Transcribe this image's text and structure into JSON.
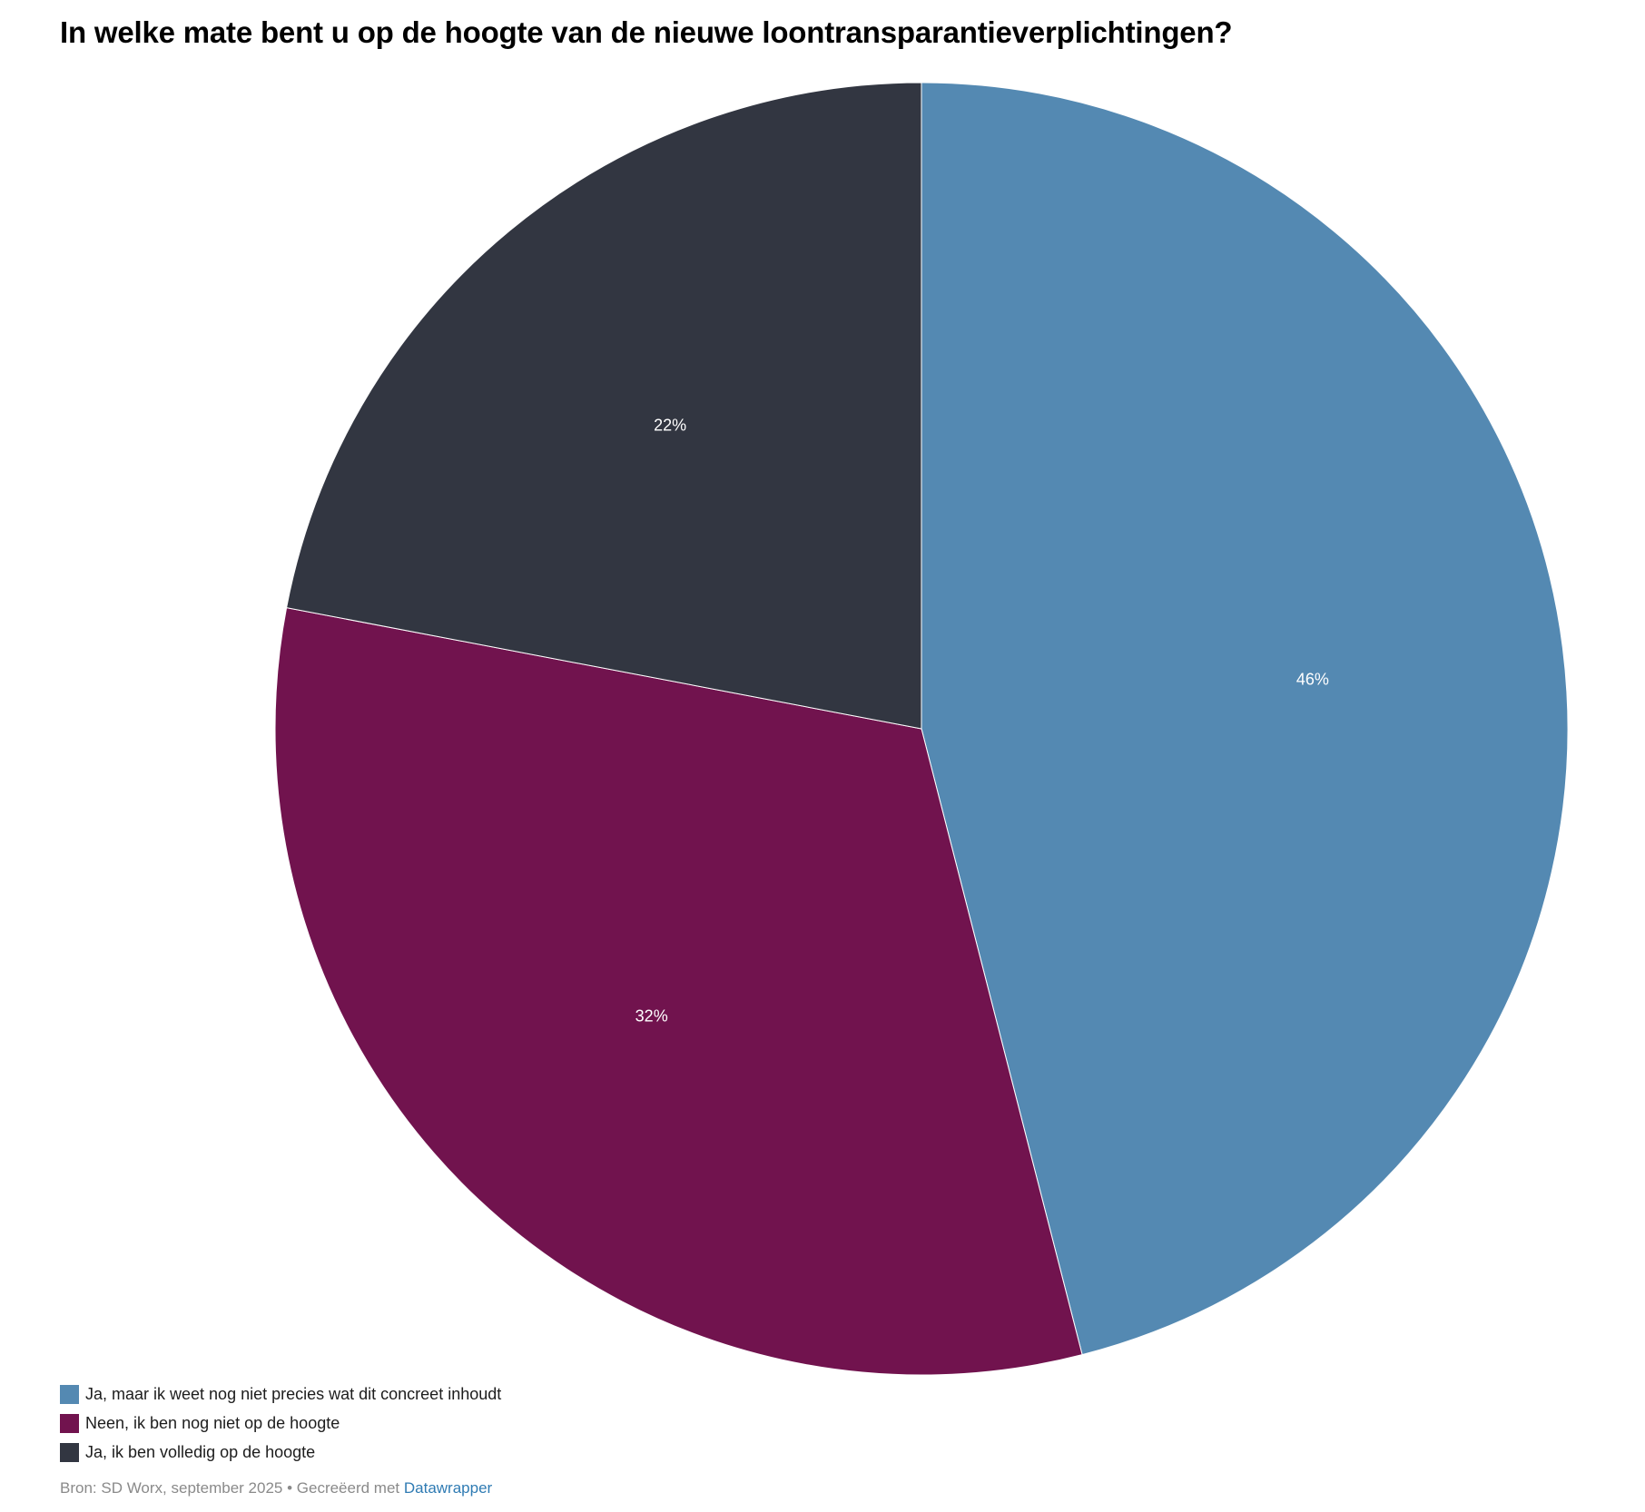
{
  "chart_data": {
    "type": "pie",
    "title": "In welke mate bent u op de hoogte van de nieuwe loontransparantieverplichtingen?",
    "categories": [
      "Ja, maar ik weet nog niet precies wat dit concreet inhoudt",
      "Neen, ik ben nog niet op de hoogte",
      "Ja, ik ben volledig op de hoogte"
    ],
    "values": [
      46,
      32,
      22
    ],
    "labels": [
      "46%",
      "32%",
      "22%"
    ],
    "unit": "%",
    "colors": [
      "#5489b2",
      "#71134e",
      "#323641"
    ],
    "start_angle": "12 o'clock",
    "direction": "clockwise",
    "legend_position": "bottom-left"
  },
  "footer": {
    "source": "Bron: SD Worx, september 2025",
    "separator": " • ",
    "created_with": "Gecreëerd met ",
    "link_label": "Datawrapper"
  }
}
